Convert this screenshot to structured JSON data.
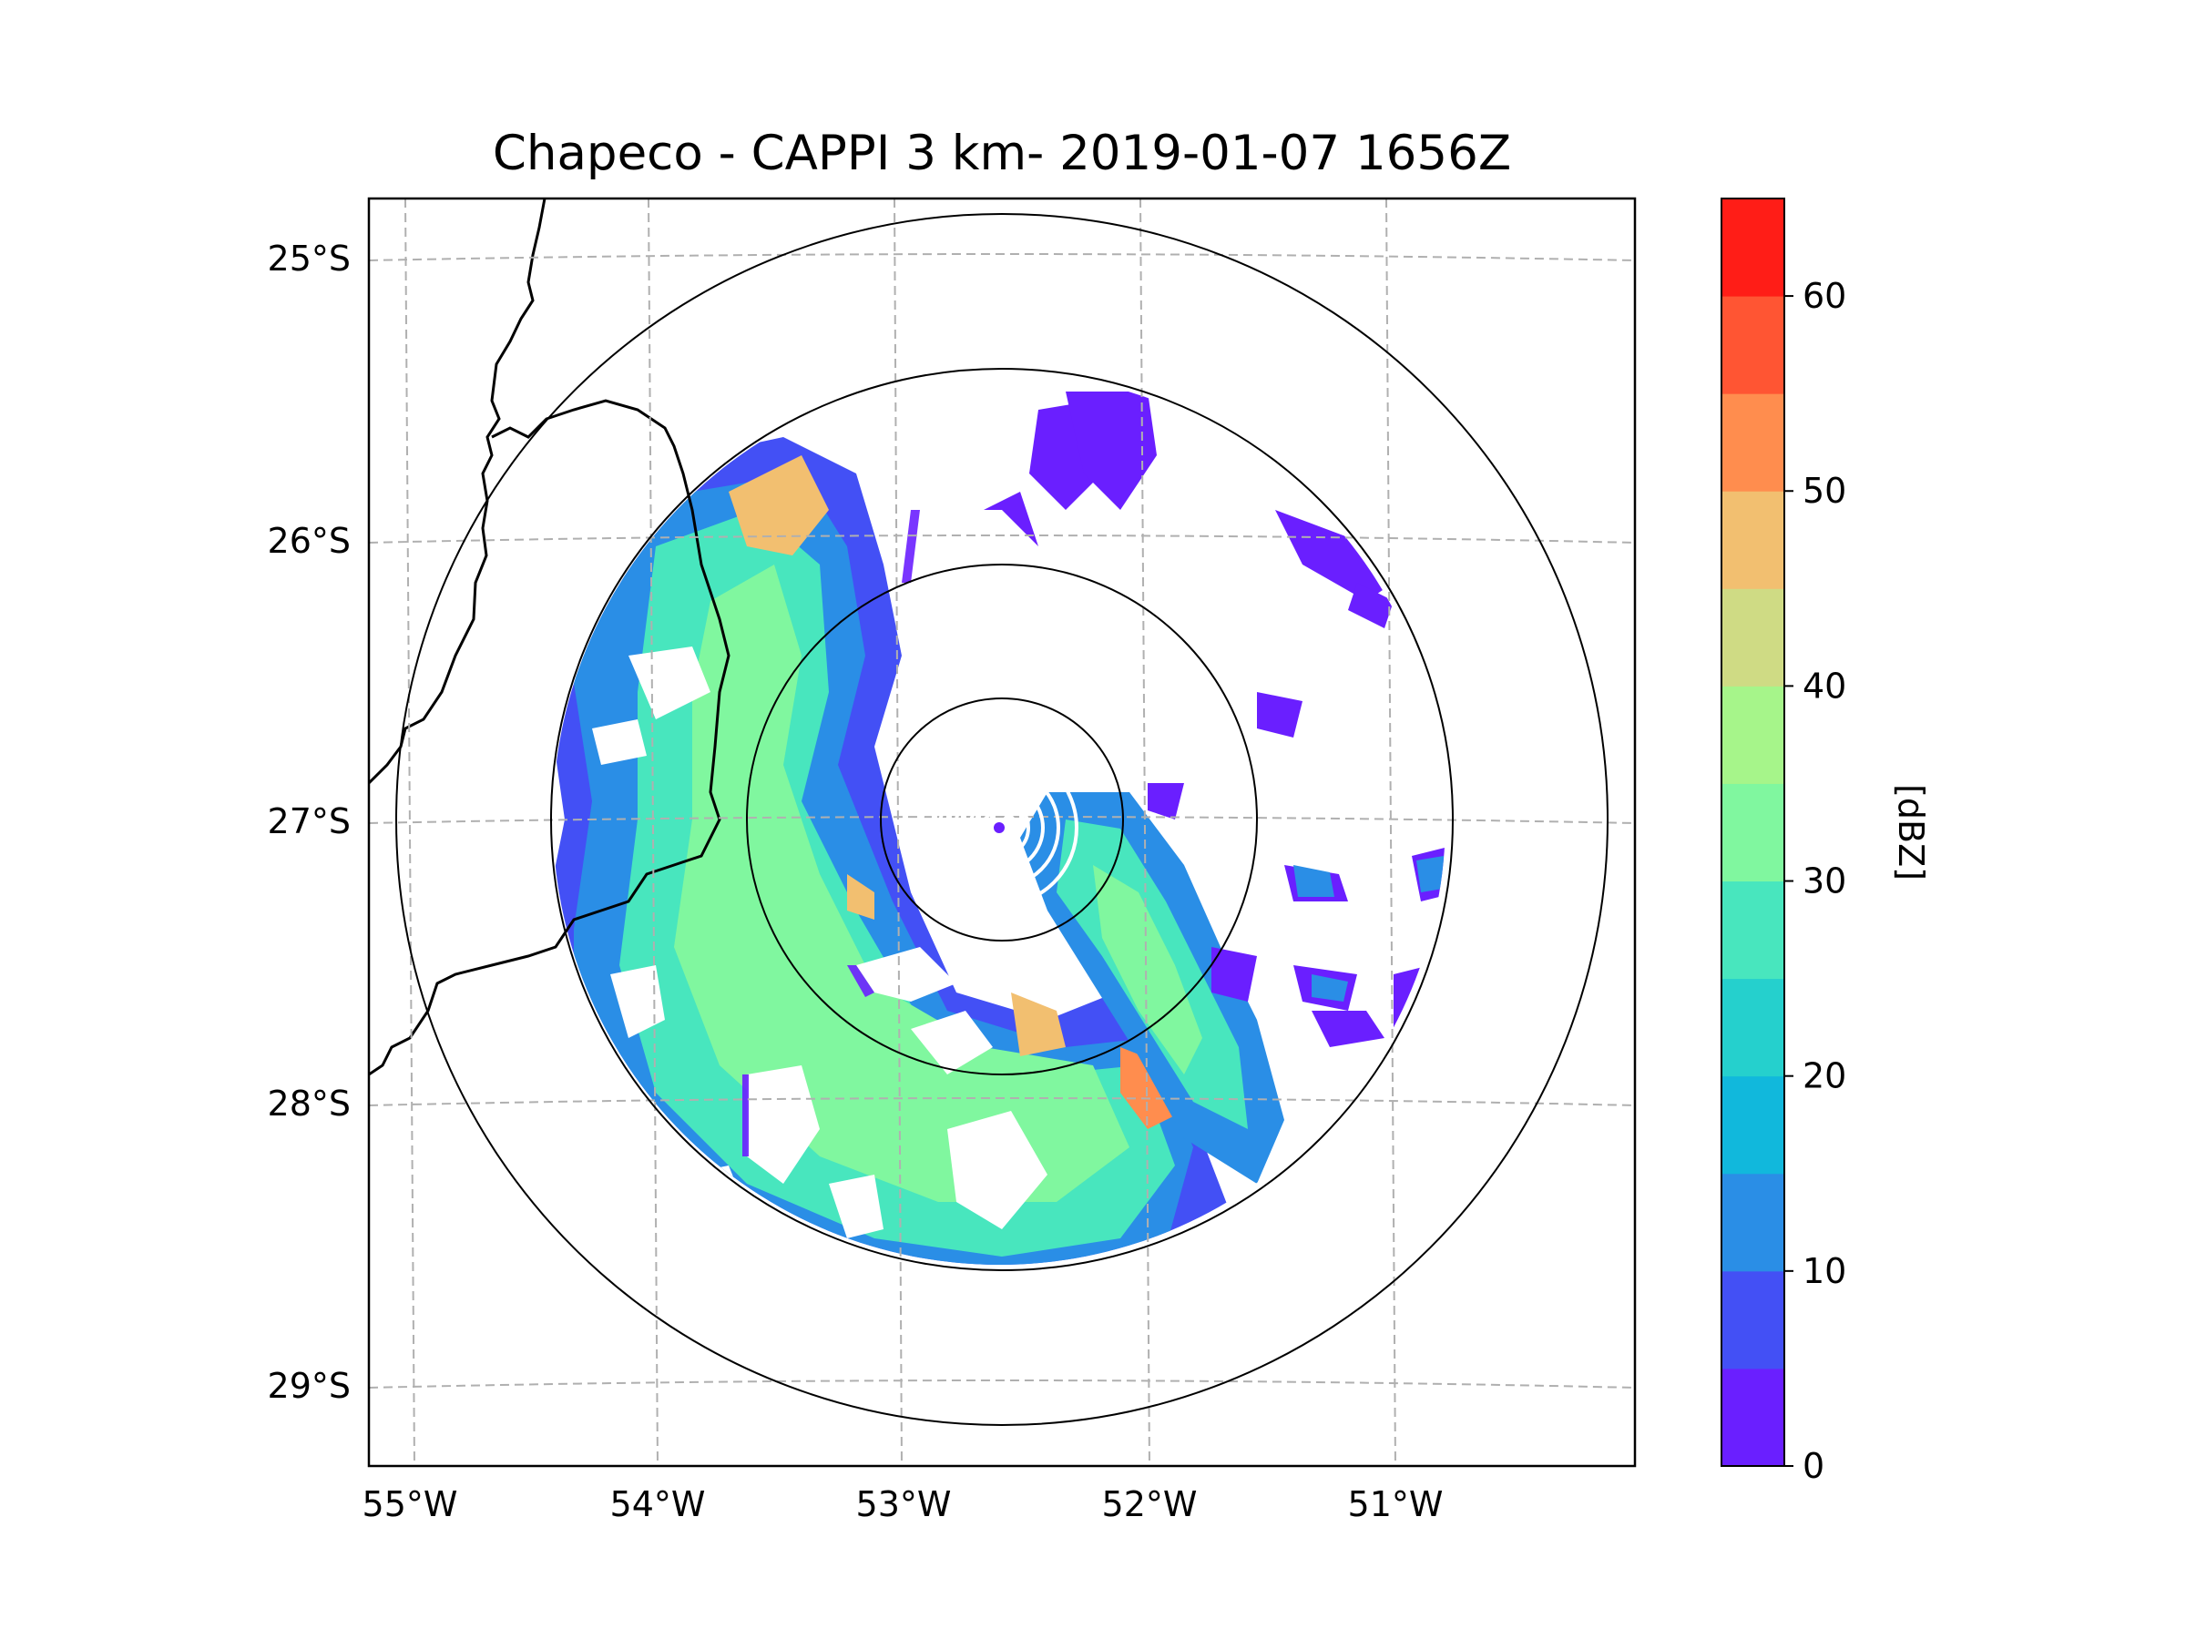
{
  "figure": {
    "title": "Chapeco - CAPPI 3 km- 2019-01-07 1656Z",
    "lon_ticks": [
      "55°W",
      "54°W",
      "53°W",
      "52°W",
      "51°W"
    ],
    "lat_ticks": [
      "25°S",
      "26°S",
      "27°S",
      "28°S",
      "29°S"
    ],
    "colorbar": {
      "label": "[dBZ]",
      "ticks": [
        "0",
        "10",
        "20",
        "30",
        "40",
        "50",
        "60"
      ],
      "range": [
        0,
        65
      ],
      "step": 5,
      "colors": [
        "#6a1fff",
        "#4350f5",
        "#2a8ee6",
        "#11b8dc",
        "#25d0cd",
        "#48e6be",
        "#80f79f",
        "#a6f58a",
        "#cfdb84",
        "#f2bf70",
        "#ff8d4e",
        "#ff5533",
        "#ff1d17"
      ]
    }
  },
  "chart_data": {
    "type": "heatmap",
    "title": "Chapeco - CAPPI 3 km- 2019-01-07 1656Z",
    "variable": "reflectivity",
    "units": "dBZ",
    "colorbar_label": "[dBZ]",
    "colorbar_ticks": [
      0,
      10,
      20,
      30,
      40,
      50,
      60
    ],
    "colorbar_range": [
      0,
      65
    ],
    "xlabel": "",
    "ylabel": "",
    "lon_ticks": [
      -55,
      -54,
      -53,
      -52,
      -51
    ],
    "lat_ticks": [
      -25,
      -26,
      -27,
      -28,
      -29
    ],
    "lon_range": [
      -55.2,
      -50.05
    ],
    "lat_range": [
      -29.3,
      -24.8
    ],
    "radar_site": {
      "name": "Chapeco",
      "lon": -52.6,
      "lat": -27.03
    },
    "range_rings_deg": [
      0.5,
      1.0,
      1.8,
      2.2
    ],
    "product": "CAPPI 3 km",
    "datetime": "2019-01-07 1656Z",
    "grid": true
  }
}
